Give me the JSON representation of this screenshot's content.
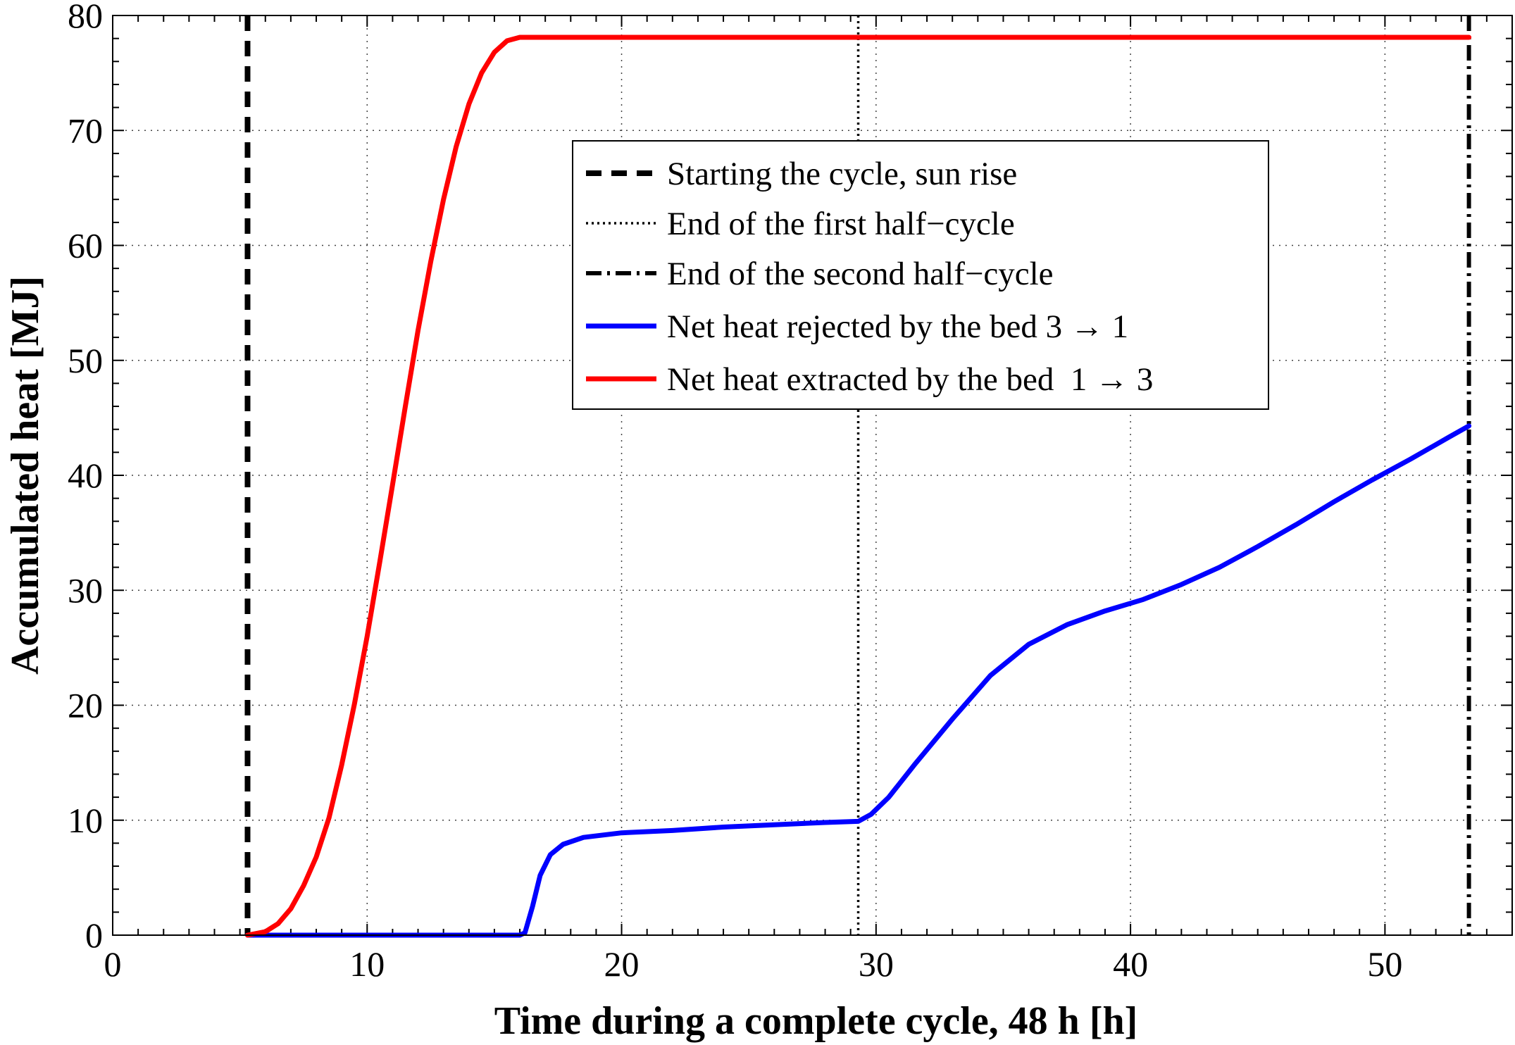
{
  "chart_data": {
    "type": "line",
    "title": "",
    "xlabel": "Time during a complete cycle, 48 h  [h]",
    "ylabel": "Accumulated heat  [MJ]",
    "xlim": [
      0,
      55
    ],
    "ylim": [
      0,
      80
    ],
    "xticks": [
      0,
      10,
      20,
      30,
      40,
      50
    ],
    "yticks": [
      0,
      10,
      20,
      30,
      40,
      50,
      60,
      70,
      80
    ],
    "grid": true,
    "legend_position": "top-center",
    "vertical_lines": [
      {
        "name": "Starting the cycle, sun rise",
        "x": 5.3,
        "style": "dashed",
        "color": "#000000"
      },
      {
        "name": "End of the first half−cycle",
        "x": 29.3,
        "style": "dotted",
        "color": "#000000"
      },
      {
        "name": "End of the second half−cycle",
        "x": 53.3,
        "style": "dashdot",
        "color": "#000000"
      }
    ],
    "series": [
      {
        "name": "Net heat rejected by the bed 3 → 1",
        "color": "#0000ff",
        "x": [
          5.3,
          16.0,
          16.2,
          16.5,
          16.8,
          17.2,
          17.7,
          18.5,
          20,
          22,
          24,
          26,
          28,
          29.3,
          29.8,
          30.5,
          31.5,
          33,
          34.5,
          36,
          37.5,
          39,
          40.5,
          42,
          43.5,
          45,
          46.5,
          48,
          49.5,
          51,
          52.5,
          53.3
        ],
        "values": [
          0,
          0,
          0.2,
          2.5,
          5.2,
          7.0,
          7.9,
          8.5,
          8.9,
          9.1,
          9.4,
          9.6,
          9.8,
          9.9,
          10.5,
          12.0,
          14.8,
          18.8,
          22.6,
          25.3,
          27.0,
          28.2,
          29.2,
          30.5,
          32.0,
          33.8,
          35.7,
          37.7,
          39.6,
          41.4,
          43.3,
          44.3
        ]
      },
      {
        "name": "Net heat extracted by the bed  1 → 3",
        "color": "#ff0000",
        "x": [
          5.3,
          6.0,
          6.5,
          7.0,
          7.5,
          8.0,
          8.5,
          9.0,
          9.5,
          10.0,
          10.5,
          11.0,
          11.5,
          12.0,
          12.5,
          13.0,
          13.5,
          14.0,
          14.5,
          15.0,
          15.5,
          16.0,
          16.3,
          20,
          25,
          30,
          35,
          40,
          45,
          50,
          53.3
        ],
        "values": [
          0,
          0.3,
          1.0,
          2.3,
          4.3,
          6.8,
          10.2,
          14.8,
          20.1,
          26.0,
          32.5,
          39.2,
          46.0,
          52.6,
          58.6,
          64.0,
          68.6,
          72.3,
          75.0,
          76.8,
          77.8,
          78.1,
          78.1,
          78.1,
          78.1,
          78.1,
          78.1,
          78.1,
          78.1,
          78.1,
          78.1
        ]
      }
    ]
  },
  "legend": {
    "items": [
      {
        "label": "Starting the cycle, sun rise",
        "style": "dashed",
        "color": "#000000"
      },
      {
        "label": "End of the first half−cycle",
        "style": "dotted",
        "color": "#000000"
      },
      {
        "label": "End of the second half−cycle",
        "style": "dashdot",
        "color": "#000000"
      },
      {
        "label": "Net heat rejected by the bed 3 → 1",
        "style": "solid",
        "color": "#0000ff"
      },
      {
        "label": "Net heat extracted by the bed  1 → 3",
        "style": "solid",
        "color": "#ff0000"
      }
    ]
  }
}
